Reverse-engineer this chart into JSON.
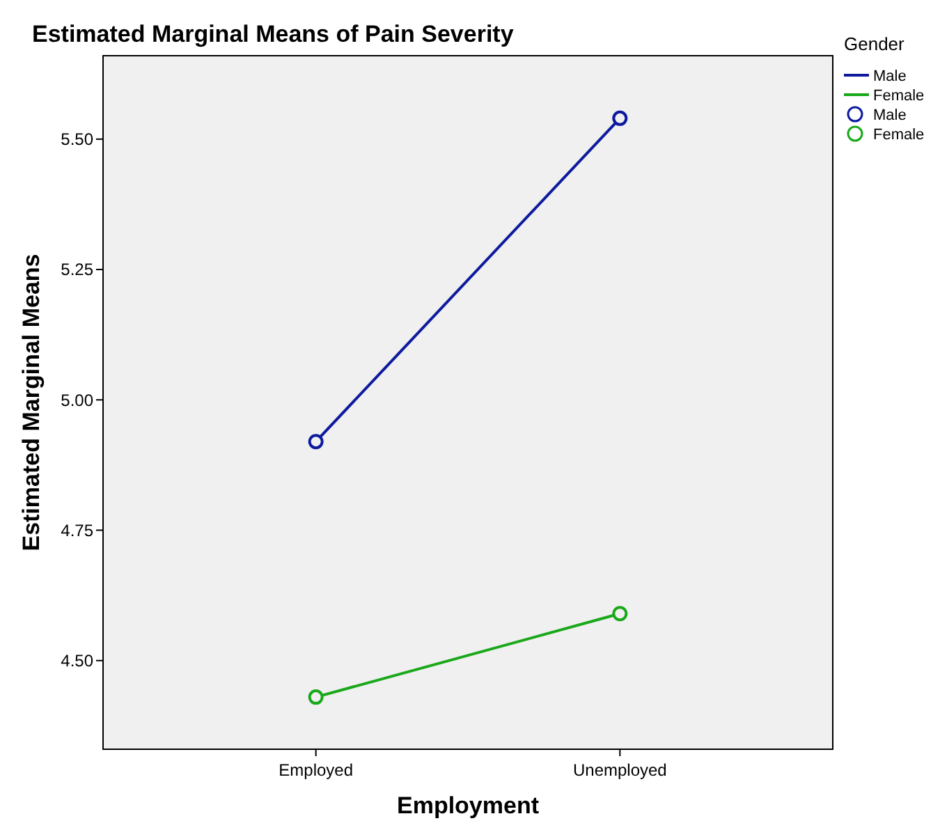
{
  "chart_data": {
    "type": "line",
    "title": "Estimated Marginal Means of Pain Severity",
    "xlabel": "Employment",
    "ylabel": "Estimated Marginal Means",
    "legend_title": "Gender",
    "categories": [
      "Employed",
      "Unemployed"
    ],
    "series": [
      {
        "name": "Male",
        "color": "#0d1a9e",
        "values": [
          4.92,
          5.54
        ]
      },
      {
        "name": "Female",
        "color": "#1aa81a",
        "values": [
          4.43,
          4.59
        ]
      }
    ],
    "ylim": [
      4.33,
      5.66
    ],
    "yticks": [
      {
        "value": 4.5,
        "label": "4.50"
      },
      {
        "value": 4.75,
        "label": "4.75"
      },
      {
        "value": 5.0,
        "label": "5.00"
      },
      {
        "value": 5.25,
        "label": "5.25"
      },
      {
        "value": 5.5,
        "label": "5.50"
      }
    ],
    "grid": false,
    "legend": "right",
    "marker": "circle",
    "line_style": "solid"
  }
}
